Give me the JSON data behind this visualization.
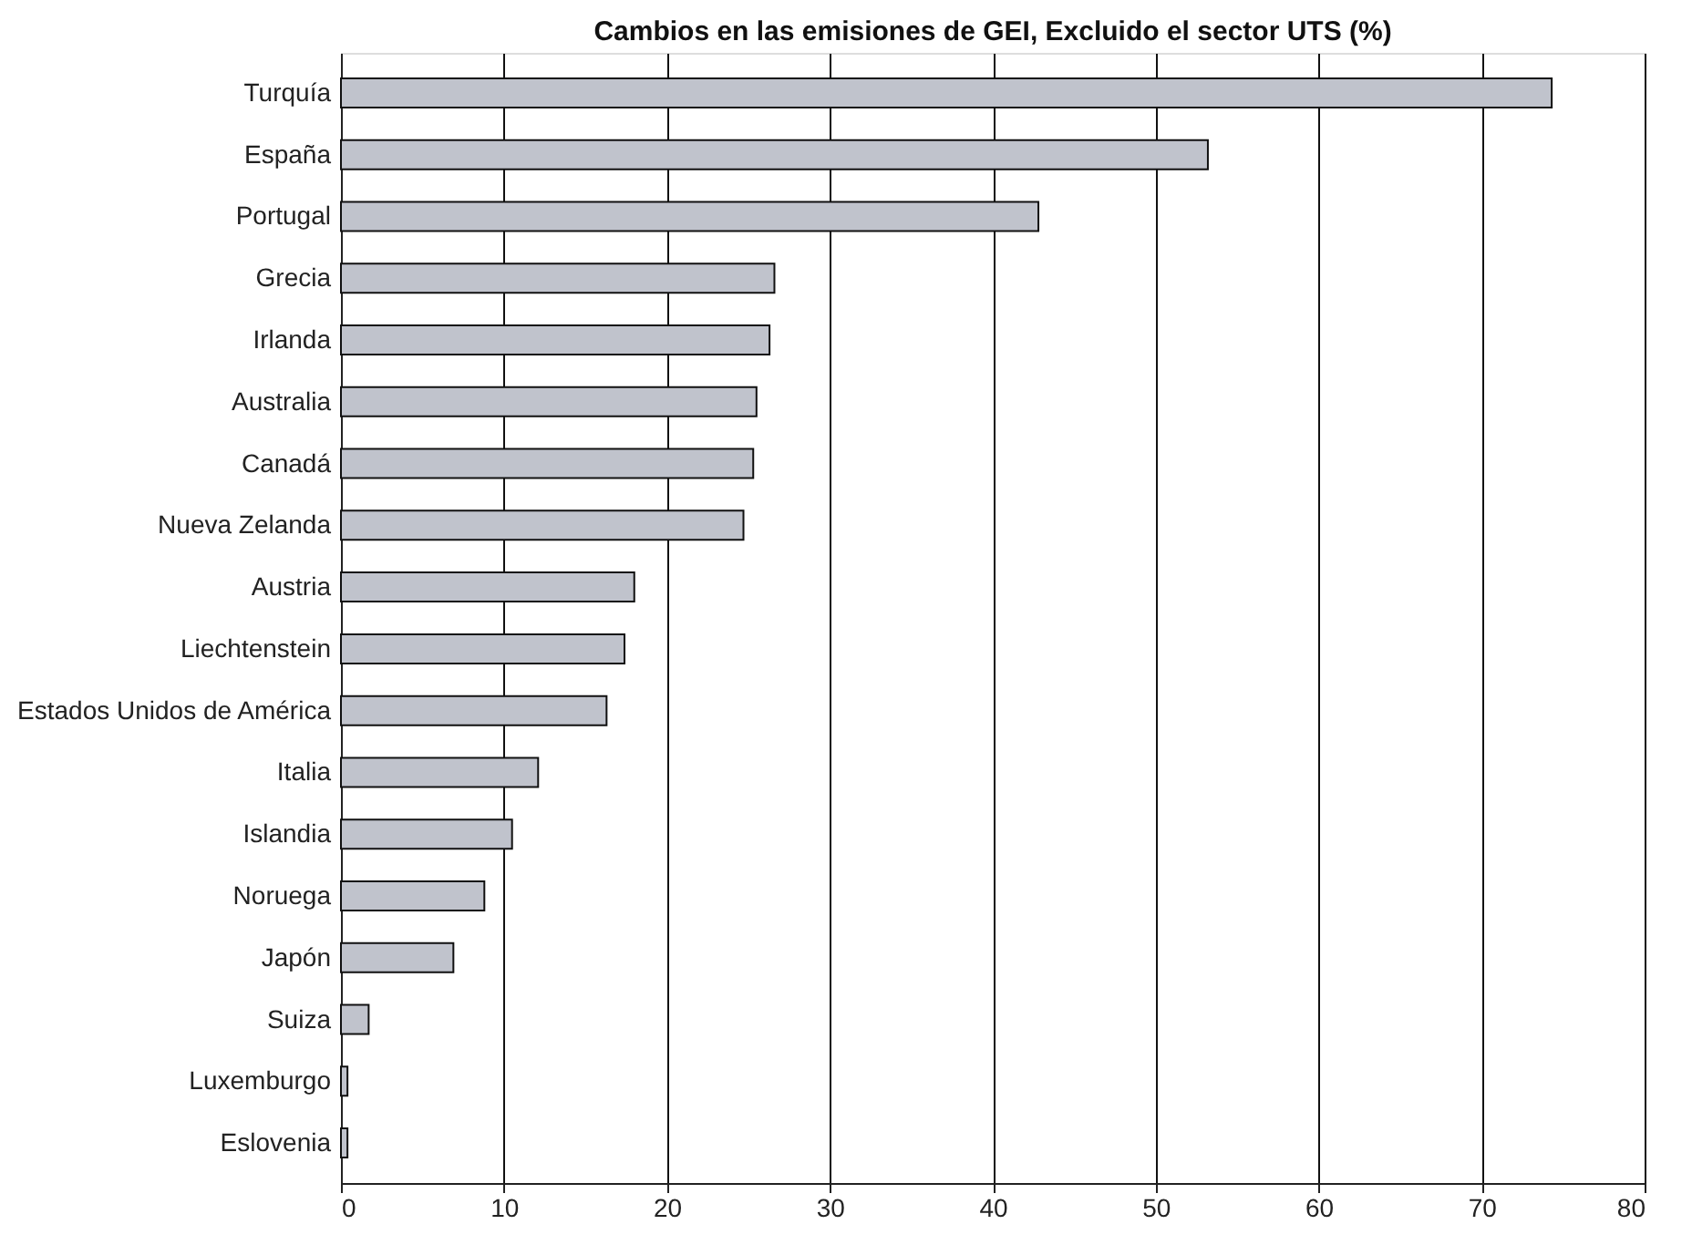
{
  "chart_data": {
    "type": "bar",
    "orientation": "horizontal",
    "title": "Cambios en las emisiones de GEI, Excluido el sector UTS (%)",
    "categories": [
      "Turquía",
      "España",
      "Portugal",
      "Grecia",
      "Irlanda",
      "Australia",
      "Canadá",
      "Nueva Zelanda",
      "Austria",
      "Liechtenstein",
      "Estados Unidos de América",
      "Italia",
      "Islandia",
      "Noruega",
      "Japón",
      "Suiza",
      "Luxemburgo",
      "Eslovenia"
    ],
    "values": [
      74.3,
      53.2,
      42.8,
      26.6,
      26.3,
      25.5,
      25.3,
      24.7,
      18.0,
      17.4,
      16.3,
      12.1,
      10.5,
      8.8,
      6.9,
      1.7,
      0.4,
      0.4
    ],
    "color": "#c0c3cc",
    "xlim": [
      0,
      80
    ],
    "xticks": [
      0,
      10,
      20,
      30,
      40,
      50,
      60,
      70,
      80
    ],
    "grid": "x"
  }
}
